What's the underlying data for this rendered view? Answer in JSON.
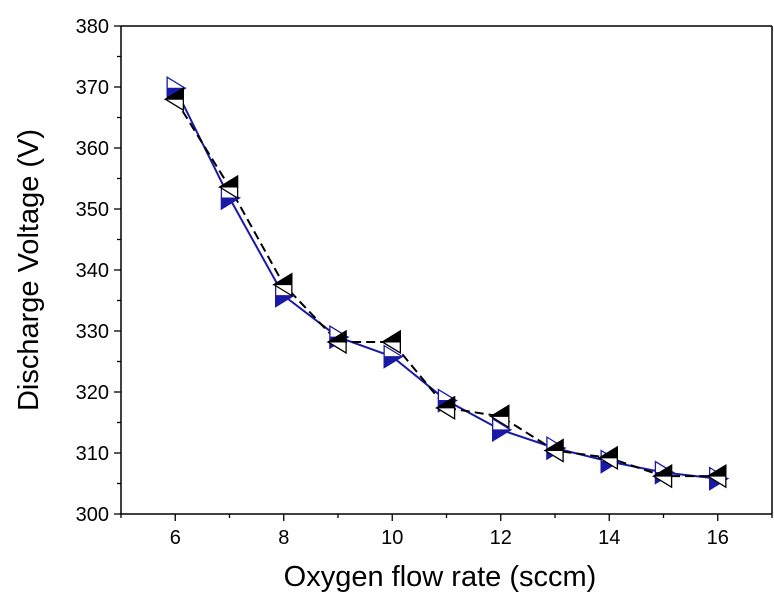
{
  "chart_data": {
    "type": "line",
    "title": "",
    "xlabel": "Oxygen flow rate (sccm)",
    "ylabel": "Discharge Voltage (V)",
    "xlim": [
      5,
      17
    ],
    "ylim": [
      300,
      380
    ],
    "xticks": [
      6,
      8,
      10,
      12,
      14,
      16
    ],
    "yticks": [
      300,
      310,
      320,
      330,
      340,
      350,
      360,
      370,
      380
    ],
    "grid": false,
    "legend": "none",
    "series": [
      {
        "color": "#1a1aa6",
        "marker": "triangle-right-half-filled",
        "line": "solid",
        "x": [
          6,
          7,
          8,
          9,
          10,
          11,
          12,
          13,
          14,
          15,
          16
        ],
        "y": [
          369.8,
          351.8,
          335.8,
          329.0,
          325.8,
          318.6,
          313.8,
          310.8,
          308.6,
          306.8,
          305.8
        ]
      },
      {
        "color": "#000000",
        "marker": "triangle-left-half-filled",
        "line": "dashed",
        "x": [
          6,
          7,
          8,
          9,
          10,
          11,
          12,
          13,
          14,
          15,
          16
        ],
        "y": [
          368.0,
          353.6,
          337.6,
          328.2,
          328.2,
          317.4,
          316.0,
          310.4,
          309.2,
          306.2,
          306.2
        ]
      }
    ]
  }
}
